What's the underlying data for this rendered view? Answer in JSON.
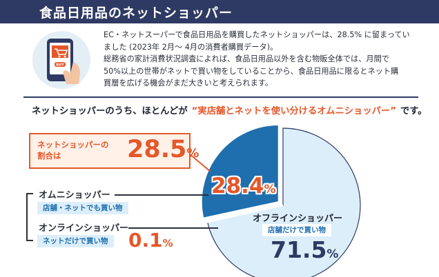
{
  "header": {
    "title": "食品日用品のネットショッパー"
  },
  "intro": {
    "lines": [
      "EC・ネットスーパーで食品日用品を購買したネットショッパーは、28.5% に留まってい",
      "ました (2023年 2月〜 4月の消費者購買データ)。",
      "総務省の家計消費状況調査によれば、食品日用品以外を含む物販全体では、月間で",
      "50%以上の世帯がネットで買い物をしていることから、食品日用品に限るとネット購",
      "買層を広げる機会がまだ大きいと考えられます。"
    ]
  },
  "illustration": {
    "icon": "shopping-cart-smartphone-icon",
    "badge": "BUY"
  },
  "headline": {
    "prefix": "ネットショッパーのうち、ほとんどが",
    "accent": "“実店舗とネットを使い分けるオムニショッパー”",
    "suffix": "です。"
  },
  "share": {
    "label": "ネットショッパーの割合は",
    "value": "28.5",
    "unit": "%"
  },
  "segments": {
    "omni": {
      "label": "オムニショッパー",
      "tag": "店舗・ネットでも買い物",
      "value": "28.4",
      "unit": "%"
    },
    "online": {
      "label": "オンラインショッパー",
      "tag": "ネットだけで買い物",
      "value": "0.1",
      "unit": "%"
    },
    "offline": {
      "label": "オフラインショッパー",
      "tag": "店舗だけで買い物",
      "value": "71.5",
      "unit": "%"
    }
  },
  "colors": {
    "navy": "#2e3a63",
    "accent": "#e5572a",
    "omni": "#1f6fae",
    "offline": "#dceefa",
    "tag_text": "#1e6fb0"
  },
  "chart_data": {
    "type": "pie",
    "slices": [
      {
        "key": "omni",
        "value": 28.4
      },
      {
        "key": "online",
        "value": 0.1
      },
      {
        "key": "offline",
        "value": 71.5
      }
    ]
  }
}
